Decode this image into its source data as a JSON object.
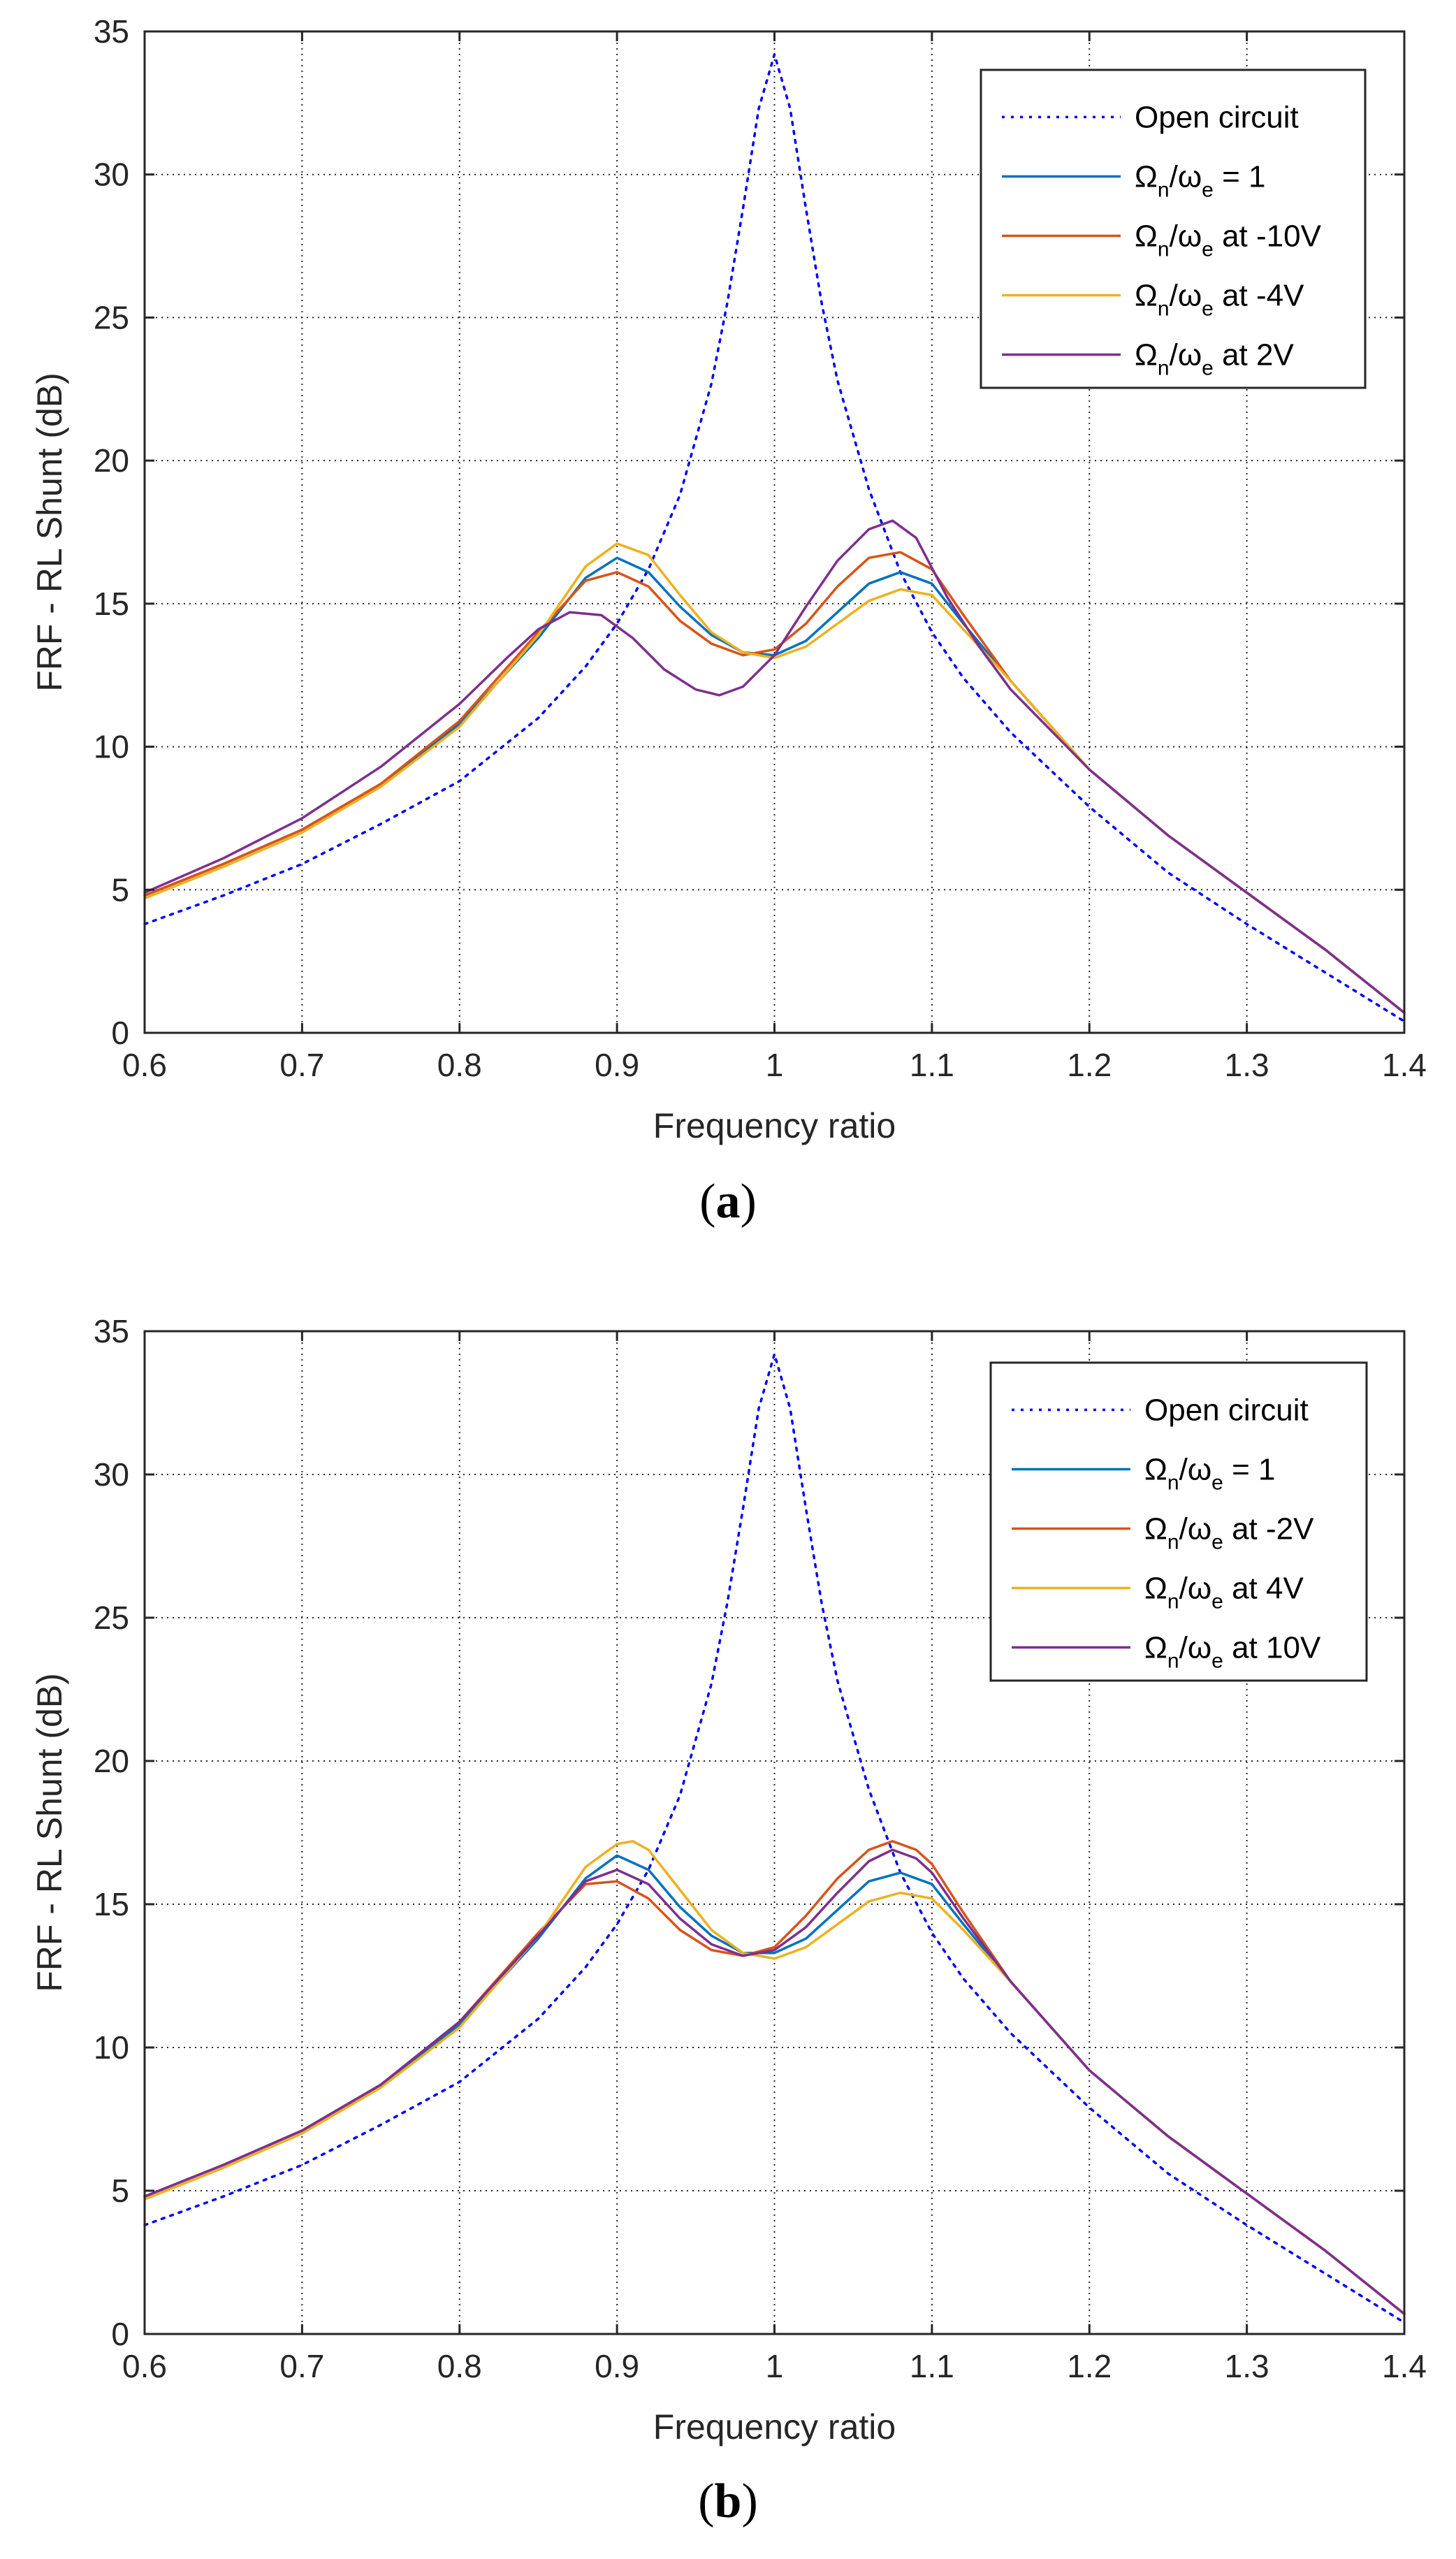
{
  "chart_data": [
    {
      "id": "a",
      "type": "line",
      "caption_letter": "a",
      "xlabel": "Frequency ratio",
      "ylabel": "FRF - RL Shunt (dB)",
      "xlim": [
        0.6,
        1.4
      ],
      "ylim": [
        0,
        35
      ],
      "xticks": [
        "0.6",
        "0.7",
        "0.8",
        "0.9",
        "1",
        "1.1",
        "1.2",
        "1.3",
        "1.4"
      ],
      "yticks": [
        "0",
        "5",
        "10",
        "15",
        "20",
        "25",
        "30",
        "35"
      ],
      "grid": true,
      "legend_position": "top-right",
      "series": [
        {
          "name": "Open circuit",
          "label": {
            "main": "Open circuit",
            "suffix": ""
          },
          "color": "#0000ff",
          "style": "dotted",
          "x": [
            0.6,
            0.65,
            0.7,
            0.75,
            0.8,
            0.85,
            0.88,
            0.9,
            0.92,
            0.94,
            0.96,
            0.97,
            0.98,
            0.99,
            1.0,
            1.01,
            1.02,
            1.03,
            1.04,
            1.06,
            1.08,
            1.1,
            1.12,
            1.15,
            1.2,
            1.25,
            1.3,
            1.35,
            1.4
          ],
          "y": [
            3.8,
            4.8,
            5.9,
            7.3,
            8.8,
            11.0,
            12.8,
            14.3,
            16.2,
            18.8,
            22.7,
            25.5,
            28.8,
            32.3,
            34.2,
            32.3,
            28.8,
            25.5,
            22.8,
            19.0,
            16.1,
            14.0,
            12.4,
            10.5,
            7.9,
            5.6,
            3.8,
            2.1,
            0.4
          ]
        },
        {
          "name": "Ωn/ωe = 1",
          "label": {
            "main": "Ω",
            "sub1": "n",
            "mid": "/ω",
            "sub2": "e",
            "suffix": " = 1"
          },
          "color": "#0072bd",
          "style": "solid",
          "x": [
            0.6,
            0.65,
            0.7,
            0.75,
            0.8,
            0.85,
            0.88,
            0.9,
            0.92,
            0.94,
            0.96,
            0.98,
            1.0,
            1.02,
            1.04,
            1.06,
            1.08,
            1.1,
            1.12,
            1.15,
            1.2,
            1.25,
            1.3,
            1.35,
            1.4
          ],
          "y": [
            4.8,
            5.9,
            7.1,
            8.7,
            10.8,
            13.8,
            15.9,
            16.6,
            16.1,
            14.9,
            13.9,
            13.3,
            13.2,
            13.7,
            14.7,
            15.7,
            16.1,
            15.7,
            14.3,
            12.3,
            9.2,
            6.9,
            4.9,
            2.9,
            0.7
          ]
        },
        {
          "name": "Ωn/ωe at -10V",
          "label": {
            "main": "Ω",
            "sub1": "n",
            "mid": "/ω",
            "sub2": "e",
            "suffix": " at -10V"
          },
          "color": "#d95319",
          "style": "solid",
          "x": [
            0.6,
            0.65,
            0.7,
            0.75,
            0.8,
            0.85,
            0.88,
            0.9,
            0.92,
            0.94,
            0.96,
            0.98,
            1.0,
            1.02,
            1.04,
            1.06,
            1.08,
            1.1,
            1.12,
            1.15,
            1.2,
            1.25,
            1.3,
            1.35,
            1.4
          ],
          "y": [
            4.8,
            5.9,
            7.1,
            8.7,
            10.9,
            14.0,
            15.8,
            16.1,
            15.6,
            14.4,
            13.6,
            13.2,
            13.4,
            14.3,
            15.6,
            16.6,
            16.8,
            16.2,
            14.6,
            12.3,
            9.2,
            6.9,
            4.9,
            2.9,
            0.7
          ]
        },
        {
          "name": "Ωn/ωe at -4V",
          "label": {
            "main": "Ω",
            "sub1": "n",
            "mid": "/ω",
            "sub2": "e",
            "suffix": " at -4V"
          },
          "color": "#edb120",
          "style": "solid",
          "x": [
            0.6,
            0.65,
            0.7,
            0.75,
            0.8,
            0.85,
            0.88,
            0.9,
            0.92,
            0.94,
            0.96,
            0.98,
            1.0,
            1.02,
            1.04,
            1.06,
            1.08,
            1.1,
            1.12,
            1.15,
            1.2,
            1.25,
            1.3,
            1.35,
            1.4
          ],
          "y": [
            4.7,
            5.8,
            7.0,
            8.6,
            10.7,
            13.9,
            16.3,
            17.1,
            16.7,
            15.3,
            14.0,
            13.3,
            13.1,
            13.5,
            14.3,
            15.1,
            15.5,
            15.3,
            14.1,
            12.3,
            9.2,
            6.9,
            4.9,
            2.9,
            0.7
          ]
        },
        {
          "name": "Ωn/ωe at 2V",
          "label": {
            "main": "Ω",
            "sub1": "n",
            "mid": "/ω",
            "sub2": "e",
            "suffix": " at 2V"
          },
          "color": "#7e2f8e",
          "style": "solid",
          "x": [
            0.6,
            0.65,
            0.7,
            0.75,
            0.8,
            0.83,
            0.85,
            0.87,
            0.89,
            0.91,
            0.93,
            0.95,
            0.965,
            0.98,
            1.0,
            1.02,
            1.04,
            1.06,
            1.075,
            1.09,
            1.11,
            1.13,
            1.15,
            1.2,
            1.25,
            1.3,
            1.35,
            1.4
          ],
          "y": [
            4.9,
            6.1,
            7.5,
            9.3,
            11.5,
            13.1,
            14.1,
            14.7,
            14.6,
            13.8,
            12.7,
            12.0,
            11.8,
            12.1,
            13.2,
            14.9,
            16.5,
            17.6,
            17.9,
            17.3,
            15.2,
            13.5,
            12.0,
            9.2,
            6.9,
            4.9,
            2.9,
            0.7
          ]
        }
      ]
    },
    {
      "id": "b",
      "type": "line",
      "caption_letter": "b",
      "xlabel": "Frequency ratio",
      "ylabel": "FRF - RL Shunt (dB)",
      "xlim": [
        0.6,
        1.4
      ],
      "ylim": [
        0,
        35
      ],
      "xticks": [
        "0.6",
        "0.7",
        "0.8",
        "0.9",
        "1",
        "1.1",
        "1.2",
        "1.3",
        "1.4"
      ],
      "yticks": [
        "0",
        "5",
        "10",
        "15",
        "20",
        "25",
        "30",
        "35"
      ],
      "grid": true,
      "legend_position": "top-right",
      "series": [
        {
          "name": "Open circuit",
          "label": {
            "main": "Open circuit",
            "suffix": ""
          },
          "color": "#0000ff",
          "style": "dotted",
          "x": [
            0.6,
            0.65,
            0.7,
            0.75,
            0.8,
            0.85,
            0.88,
            0.9,
            0.92,
            0.94,
            0.96,
            0.97,
            0.98,
            0.99,
            1.0,
            1.01,
            1.02,
            1.03,
            1.04,
            1.06,
            1.08,
            1.1,
            1.12,
            1.15,
            1.2,
            1.25,
            1.3,
            1.35,
            1.4
          ],
          "y": [
            3.8,
            4.8,
            5.9,
            7.3,
            8.8,
            11.0,
            12.8,
            14.3,
            16.2,
            18.8,
            22.7,
            25.5,
            28.8,
            32.3,
            34.2,
            32.3,
            28.8,
            25.5,
            22.8,
            19.0,
            16.1,
            14.0,
            12.4,
            10.5,
            7.9,
            5.6,
            3.8,
            2.1,
            0.4
          ]
        },
        {
          "name": "Ωn/ωe = 1",
          "label": {
            "main": "Ω",
            "sub1": "n",
            "mid": "/ω",
            "sub2": "e",
            "suffix": " = 1"
          },
          "color": "#0072bd",
          "style": "solid",
          "x": [
            0.6,
            0.65,
            0.7,
            0.75,
            0.8,
            0.85,
            0.88,
            0.9,
            0.92,
            0.94,
            0.96,
            0.98,
            1.0,
            1.02,
            1.04,
            1.06,
            1.08,
            1.1,
            1.12,
            1.15,
            1.2,
            1.25,
            1.3,
            1.35,
            1.4
          ],
          "y": [
            4.8,
            5.9,
            7.1,
            8.7,
            10.8,
            13.8,
            15.9,
            16.7,
            16.2,
            14.9,
            13.9,
            13.3,
            13.3,
            13.8,
            14.8,
            15.8,
            16.1,
            15.7,
            14.3,
            12.3,
            9.2,
            6.9,
            4.9,
            2.9,
            0.7
          ]
        },
        {
          "name": "Ωn/ωe at -2V",
          "label": {
            "main": "Ω",
            "sub1": "n",
            "mid": "/ω",
            "sub2": "e",
            "suffix": " at -2V"
          },
          "color": "#d95319",
          "style": "solid",
          "x": [
            0.6,
            0.65,
            0.7,
            0.75,
            0.8,
            0.85,
            0.88,
            0.9,
            0.92,
            0.94,
            0.96,
            0.98,
            1.0,
            1.02,
            1.04,
            1.06,
            1.075,
            1.09,
            1.1,
            1.12,
            1.15,
            1.2,
            1.25,
            1.3,
            1.35,
            1.4
          ],
          "y": [
            4.8,
            5.9,
            7.1,
            8.7,
            10.9,
            14.0,
            15.7,
            15.8,
            15.2,
            14.1,
            13.4,
            13.2,
            13.5,
            14.6,
            15.9,
            16.9,
            17.2,
            16.9,
            16.4,
            14.7,
            12.3,
            9.2,
            6.9,
            4.9,
            2.9,
            0.7
          ]
        },
        {
          "name": "Ωn/ωe at 4V",
          "label": {
            "main": "Ω",
            "sub1": "n",
            "mid": "/ω",
            "sub2": "e",
            "suffix": " at 4V"
          },
          "color": "#edb120",
          "style": "solid",
          "x": [
            0.6,
            0.65,
            0.7,
            0.75,
            0.8,
            0.85,
            0.88,
            0.9,
            0.91,
            0.92,
            0.94,
            0.96,
            0.98,
            1.0,
            1.02,
            1.04,
            1.06,
            1.08,
            1.1,
            1.12,
            1.15,
            1.2,
            1.25,
            1.3,
            1.35,
            1.4
          ],
          "y": [
            4.7,
            5.8,
            7.0,
            8.6,
            10.7,
            13.9,
            16.3,
            17.1,
            17.2,
            16.9,
            15.5,
            14.1,
            13.3,
            13.1,
            13.5,
            14.3,
            15.1,
            15.4,
            15.2,
            14.1,
            12.3,
            9.2,
            6.9,
            4.9,
            2.9,
            0.7
          ]
        },
        {
          "name": "Ωn/ωe at 10V",
          "label": {
            "main": "Ω",
            "sub1": "n",
            "mid": "/ω",
            "sub2": "e",
            "suffix": " at 10V"
          },
          "color": "#7e2f8e",
          "style": "solid",
          "x": [
            0.6,
            0.65,
            0.7,
            0.75,
            0.8,
            0.85,
            0.88,
            0.9,
            0.92,
            0.94,
            0.96,
            0.98,
            1.0,
            1.02,
            1.04,
            1.06,
            1.075,
            1.09,
            1.1,
            1.12,
            1.15,
            1.2,
            1.25,
            1.3,
            1.35,
            1.4
          ],
          "y": [
            4.8,
            5.9,
            7.1,
            8.7,
            10.9,
            13.9,
            15.8,
            16.2,
            15.7,
            14.5,
            13.6,
            13.2,
            13.4,
            14.2,
            15.4,
            16.5,
            16.9,
            16.6,
            16.1,
            14.5,
            12.3,
            9.2,
            6.9,
            4.9,
            2.9,
            0.7
          ]
        }
      ]
    }
  ]
}
